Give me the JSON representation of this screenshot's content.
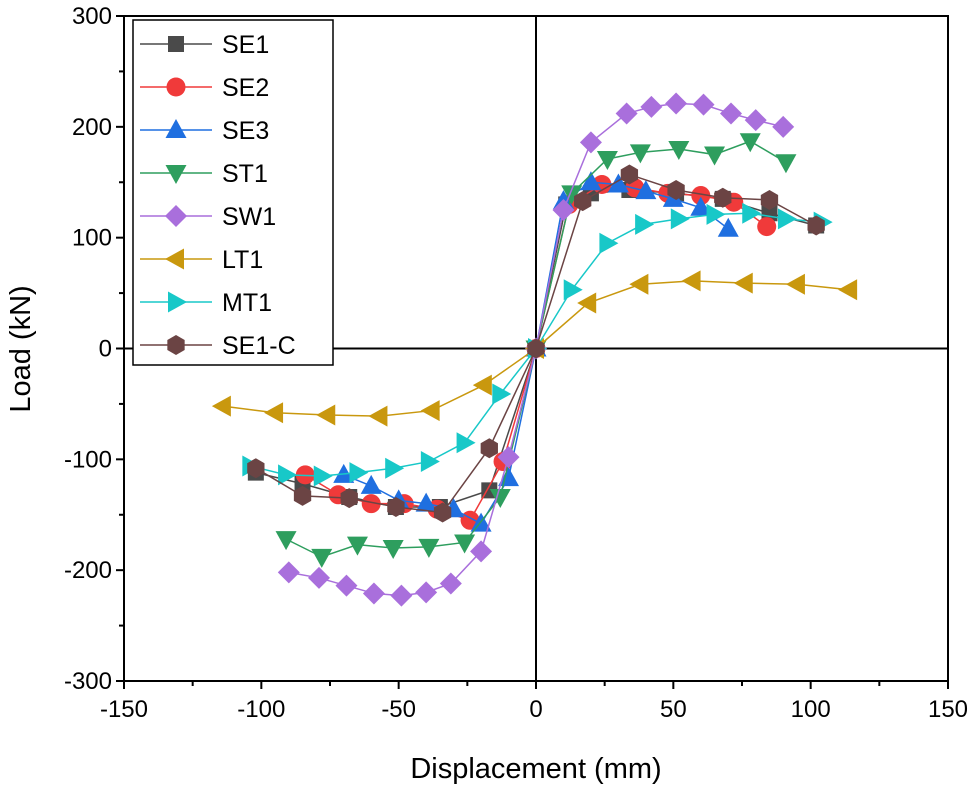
{
  "chart_data": {
    "type": "scatter",
    "xlabel": "Displacement (mm)",
    "ylabel": "Load (kN)",
    "xlim": [
      -150,
      150
    ],
    "ylim": [
      -300,
      300
    ],
    "xticks": [
      -150,
      -100,
      -50,
      0,
      50,
      100,
      150
    ],
    "yticks": [
      -300,
      -200,
      -100,
      0,
      100,
      200,
      300
    ],
    "grid": false,
    "legend_position": "top-left",
    "series": [
      {
        "name": "SE1",
        "marker": "square",
        "color": "#4a4a4a",
        "points": [
          [
            -102,
            -112
          ],
          [
            -85,
            -122
          ],
          [
            -68,
            -134
          ],
          [
            -51,
            -143
          ],
          [
            -35,
            -143
          ],
          [
            -17,
            -128
          ],
          [
            0,
            0
          ],
          [
            11,
            130
          ],
          [
            20,
            140
          ],
          [
            34,
            143
          ],
          [
            51,
            140
          ],
          [
            68,
            135
          ],
          [
            85,
            122
          ],
          [
            102,
            111
          ]
        ]
      },
      {
        "name": "SE2",
        "marker": "circle",
        "color": "#f03a3a",
        "points": [
          [
            -84,
            -114
          ],
          [
            -72,
            -132
          ],
          [
            -60,
            -140
          ],
          [
            -48,
            -140
          ],
          [
            -36,
            -145
          ],
          [
            -24,
            -155
          ],
          [
            -12,
            -102
          ],
          [
            0,
            0
          ],
          [
            12,
            130
          ],
          [
            24,
            148
          ],
          [
            36,
            145
          ],
          [
            48,
            140
          ],
          [
            60,
            138
          ],
          [
            72,
            132
          ],
          [
            84,
            110
          ]
        ]
      },
      {
        "name": "SE3",
        "marker": "triangle-up",
        "color": "#1f6fe0",
        "points": [
          [
            -70,
            -114
          ],
          [
            -60,
            -124
          ],
          [
            -50,
            -137
          ],
          [
            -40,
            -140
          ],
          [
            -30,
            -145
          ],
          [
            -20,
            -158
          ],
          [
            -10,
            -117
          ],
          [
            0,
            0
          ],
          [
            10,
            133
          ],
          [
            20,
            150
          ],
          [
            30,
            148
          ],
          [
            40,
            142
          ],
          [
            50,
            135
          ],
          [
            60,
            127
          ],
          [
            70,
            108
          ]
        ]
      },
      {
        "name": "ST1",
        "marker": "triangle-down",
        "color": "#2e9e5e",
        "points": [
          [
            -91,
            -172
          ],
          [
            -78,
            -188
          ],
          [
            -65,
            -177
          ],
          [
            -52,
            -180
          ],
          [
            -39,
            -179
          ],
          [
            -26,
            -175
          ],
          [
            -13,
            -134
          ],
          [
            0,
            0
          ],
          [
            13,
            140
          ],
          [
            26,
            171
          ],
          [
            38,
            177
          ],
          [
            52,
            180
          ],
          [
            65,
            175
          ],
          [
            78,
            187
          ],
          [
            91,
            168
          ]
        ]
      },
      {
        "name": "SW1",
        "marker": "diamond",
        "color": "#a96fdc",
        "points": [
          [
            -90,
            -202
          ],
          [
            -79,
            -207
          ],
          [
            -69,
            -214
          ],
          [
            -59,
            -221
          ],
          [
            -49,
            -223
          ],
          [
            -40,
            -220
          ],
          [
            -31,
            -212
          ],
          [
            -20,
            -183
          ],
          [
            -10,
            -98
          ],
          [
            0,
            0
          ],
          [
            10,
            125
          ],
          [
            20,
            186
          ],
          [
            33,
            212
          ],
          [
            42,
            218
          ],
          [
            51,
            221
          ],
          [
            61,
            220
          ],
          [
            71,
            212
          ],
          [
            80,
            206
          ],
          [
            90,
            200
          ]
        ]
      },
      {
        "name": "LT1",
        "marker": "triangle-left",
        "color": "#c9980e",
        "points": [
          [
            -114,
            -52
          ],
          [
            -95,
            -58
          ],
          [
            -76,
            -60
          ],
          [
            -57,
            -61
          ],
          [
            -38,
            -56
          ],
          [
            -19,
            -33
          ],
          [
            0,
            0
          ],
          [
            19,
            41
          ],
          [
            38,
            58
          ],
          [
            57,
            61
          ],
          [
            76,
            59
          ],
          [
            95,
            58
          ],
          [
            114,
            53
          ]
        ]
      },
      {
        "name": "MT1",
        "marker": "triangle-right",
        "color": "#18c8c8",
        "points": [
          [
            -104,
            -106
          ],
          [
            -91,
            -114
          ],
          [
            -78,
            -115
          ],
          [
            -65,
            -112
          ],
          [
            -52,
            -108
          ],
          [
            -39,
            -102
          ],
          [
            -26,
            -85
          ],
          [
            -13,
            -41
          ],
          [
            0,
            0
          ],
          [
            13,
            53
          ],
          [
            26,
            95
          ],
          [
            39,
            112
          ],
          [
            52,
            117
          ],
          [
            65,
            121
          ],
          [
            78,
            122
          ],
          [
            91,
            117
          ],
          [
            104,
            114
          ]
        ]
      },
      {
        "name": "SE1-C",
        "marker": "hexagon",
        "color": "#6b4444",
        "points": [
          [
            -102,
            -108
          ],
          [
            -85,
            -133
          ],
          [
            -68,
            -135
          ],
          [
            -51,
            -143
          ],
          [
            -34,
            -148
          ],
          [
            -17,
            -90
          ],
          [
            0,
            0
          ],
          [
            17,
            133
          ],
          [
            34,
            157
          ],
          [
            51,
            143
          ],
          [
            68,
            136
          ],
          [
            85,
            134
          ],
          [
            102,
            111
          ]
        ]
      }
    ]
  }
}
